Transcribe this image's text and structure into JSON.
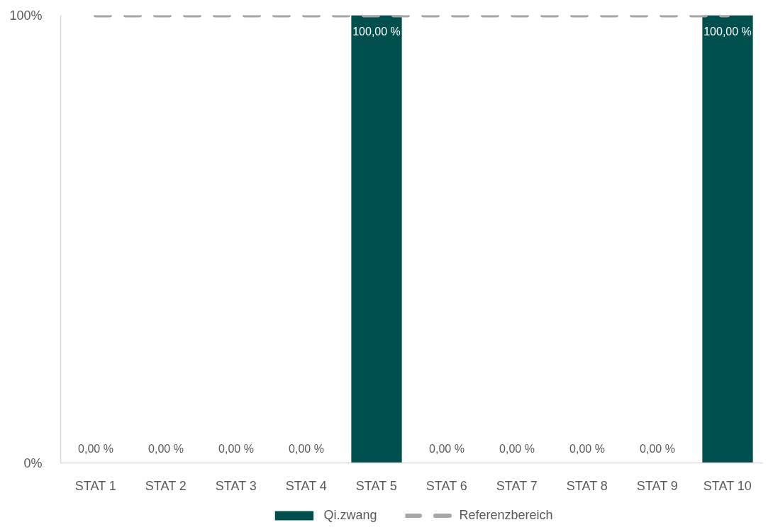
{
  "chart_data": {
    "type": "bar",
    "categories": [
      "STAT 1",
      "STAT 2",
      "STAT 3",
      "STAT 4",
      "STAT 5",
      "STAT 6",
      "STAT 7",
      "STAT 8",
      "STAT 9",
      "STAT 10"
    ],
    "ylim": [
      0,
      100
    ],
    "yticks": [
      {
        "value": 0,
        "label": "0%"
      },
      {
        "value": 100,
        "label": "100%"
      }
    ],
    "grid": false,
    "legend": "bottom",
    "series": [
      {
        "name": "Qi.zwang",
        "color": "#004f4f",
        "values": [
          0,
          0,
          0,
          0,
          100,
          0,
          0,
          0,
          0,
          100
        ],
        "value_labels": [
          "0,00 %",
          "0,00 %",
          "0,00 %",
          "0,00 %",
          "100,00 %",
          "0,00 %",
          "0,00 %",
          "0,00 %",
          "0,00 %",
          "100,00 %"
        ]
      },
      {
        "name": "Referenzbereich",
        "type": "line",
        "color": "#a6a6a6",
        "line_style": "dashed",
        "values": [
          100,
          100,
          100,
          100,
          100,
          100,
          100,
          100,
          100,
          100
        ]
      }
    ]
  }
}
